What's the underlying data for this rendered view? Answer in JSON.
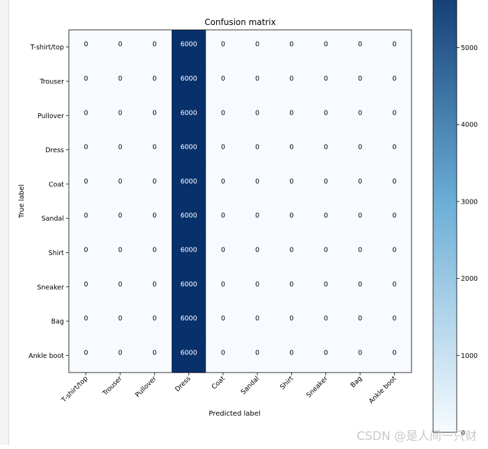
{
  "chart_data": {
    "type": "heatmap",
    "title": "Confusion matrix",
    "xlabel": "Predicted label",
    "ylabel": "True label",
    "x_categories": [
      "T-shirt/top",
      "Trouser",
      "Pullover",
      "Dress",
      "Coat",
      "Sandal",
      "Shirt",
      "Sneaker",
      "Bag",
      "Ankle boot"
    ],
    "y_categories": [
      "T-shirt/top",
      "Trouser",
      "Pullover",
      "Dress",
      "Coat",
      "Sandal",
      "Shirt",
      "Sneaker",
      "Bag",
      "Ankle boot"
    ],
    "matrix": [
      [
        0,
        0,
        0,
        6000,
        0,
        0,
        0,
        0,
        0,
        0
      ],
      [
        0,
        0,
        0,
        6000,
        0,
        0,
        0,
        0,
        0,
        0
      ],
      [
        0,
        0,
        0,
        6000,
        0,
        0,
        0,
        0,
        0,
        0
      ],
      [
        0,
        0,
        0,
        6000,
        0,
        0,
        0,
        0,
        0,
        0
      ],
      [
        0,
        0,
        0,
        6000,
        0,
        0,
        0,
        0,
        0,
        0
      ],
      [
        0,
        0,
        0,
        6000,
        0,
        0,
        0,
        0,
        0,
        0
      ],
      [
        0,
        0,
        0,
        6000,
        0,
        0,
        0,
        0,
        0,
        0
      ],
      [
        0,
        0,
        0,
        6000,
        0,
        0,
        0,
        0,
        0,
        0
      ],
      [
        0,
        0,
        0,
        6000,
        0,
        0,
        0,
        0,
        0,
        0
      ],
      [
        0,
        0,
        0,
        6000,
        0,
        0,
        0,
        0,
        0,
        0
      ]
    ],
    "colormap": "Blues",
    "colormap_low": "#f7fbff",
    "colormap_high": "#08306b",
    "value_range": [
      0,
      6000
    ],
    "colorbar_ticks": [
      1000,
      2000,
      3000,
      4000,
      5000
    ],
    "colorbar_partial_tick": "0",
    "grid": false
  },
  "watermark": "CSDN @是人间一只财"
}
